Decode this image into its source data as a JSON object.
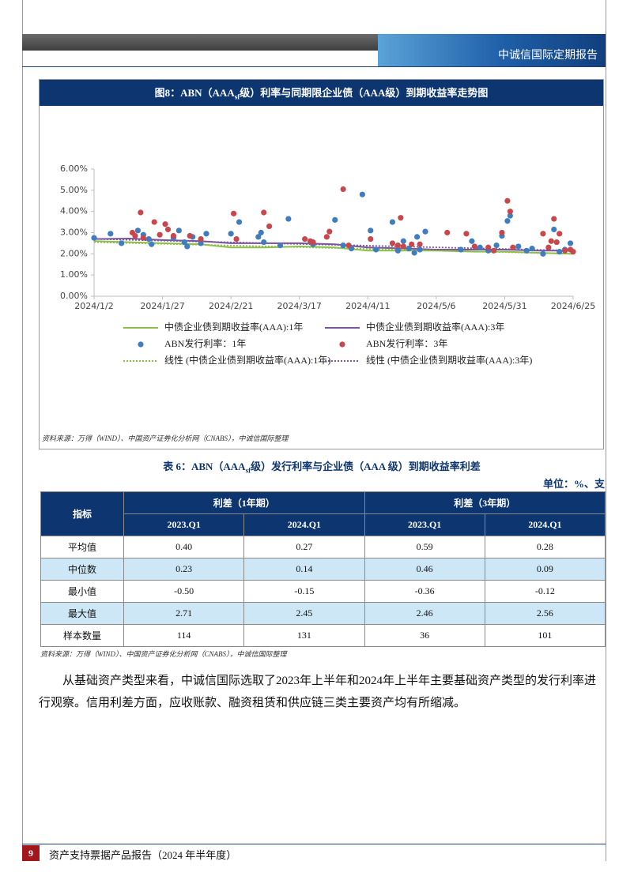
{
  "header": {
    "title": "中诚信国际定期报告"
  },
  "figure": {
    "title_pre": "图8：ABN（AAA",
    "title_sub": "sf",
    "title_post": "级）利率与同期限企业债（AAA级）到期收益率走势图",
    "source": "资料来源：万得（WIND）、中国资产证券化分析网（CNABS），中诚信国际整理"
  },
  "chart_data": {
    "type": "scatter",
    "xlim": [
      "2024/1/2",
      "2024/6/25"
    ],
    "xticks": [
      "2024/1/2",
      "2024/1/27",
      "2024/2/21",
      "2024/3/17",
      "2024/4/11",
      "2024/5/6",
      "2024/5/31",
      "2024/6/25"
    ],
    "ylim": [
      0,
      6
    ],
    "yticks": [
      {
        "value": 0,
        "label": "0.00%"
      },
      {
        "value": 1,
        "label": "1.00%"
      },
      {
        "value": 2,
        "label": "2.00%"
      },
      {
        "value": 3,
        "label": "3.00%"
      },
      {
        "value": 4,
        "label": "4.00%"
      },
      {
        "value": 5,
        "label": "5.00%"
      },
      {
        "value": 6,
        "label": "6.00%"
      }
    ],
    "grid": false,
    "series": [
      {
        "name": "中债企业债到期收益率(AAA):1年",
        "type": "line",
        "color": "#8dc04b",
        "x": [
          "2024/1/2",
          "2024/1/15",
          "2024/1/27",
          "2024/2/10",
          "2024/2/21",
          "2024/3/5",
          "2024/3/17",
          "2024/3/30",
          "2024/4/11",
          "2024/4/25",
          "2024/5/6",
          "2024/5/20",
          "2024/5/31",
          "2024/6/12",
          "2024/6/25"
        ],
        "values": [
          2.6,
          2.55,
          2.5,
          2.45,
          2.3,
          2.3,
          2.35,
          2.3,
          2.15,
          2.15,
          2.15,
          2.1,
          2.1,
          2.05,
          2.0
        ]
      },
      {
        "name": "中债企业债到期收益率(AAA):3年",
        "type": "line",
        "color": "#7a55a0",
        "x": [
          "2024/1/2",
          "2024/1/15",
          "2024/1/27",
          "2024/2/10",
          "2024/2/21",
          "2024/3/5",
          "2024/3/17",
          "2024/3/30",
          "2024/4/11",
          "2024/4/25",
          "2024/5/6",
          "2024/5/20",
          "2024/5/31",
          "2024/6/12",
          "2024/6/25"
        ],
        "values": [
          2.7,
          2.72,
          2.65,
          2.6,
          2.5,
          2.5,
          2.5,
          2.45,
          2.3,
          2.25,
          2.2,
          2.2,
          2.2,
          2.15,
          2.15
        ]
      },
      {
        "name": "ABN发行利率：1年",
        "type": "scatter",
        "color": "#3f7cc0",
        "x": [
          "2024/1/2",
          "2024/1/8",
          "2024/1/12",
          "2024/1/18",
          "2024/1/20",
          "2024/1/22",
          "2024/1/23",
          "2024/1/31",
          "2024/2/2",
          "2024/2/4",
          "2024/2/5",
          "2024/2/7",
          "2024/2/10",
          "2024/2/12",
          "2024/2/21",
          "2024/2/24",
          "2024/3/2",
          "2024/3/3",
          "2024/3/4",
          "2024/3/10",
          "2024/3/13",
          "2024/3/22",
          "2024/3/30",
          "2024/4/2",
          "2024/4/5",
          "2024/4/9",
          "2024/4/12",
          "2024/4/14",
          "2024/4/20",
          "2024/4/22",
          "2024/4/24",
          "2024/4/26",
          "2024/4/28",
          "2024/4/29",
          "2024/4/30",
          "2024/5/2",
          "2024/5/15",
          "2024/5/19",
          "2024/5/22",
          "2024/5/25",
          "2024/5/28",
          "2024/5/30",
          "2024/6/1",
          "2024/6/2",
          "2024/6/5",
          "2024/6/8",
          "2024/6/10",
          "2024/6/14",
          "2024/6/18",
          "2024/6/20",
          "2024/6/22",
          "2024/6/24"
        ],
        "values": [
          2.75,
          2.95,
          2.5,
          3.1,
          2.9,
          2.7,
          2.45,
          2.75,
          3.1,
          2.55,
          2.35,
          2.8,
          2.5,
          2.95,
          2.95,
          3.5,
          2.8,
          3.0,
          2.55,
          2.4,
          3.65,
          2.45,
          3.6,
          2.4,
          2.25,
          4.8,
          3.1,
          2.2,
          3.5,
          2.15,
          2.6,
          2.25,
          2.05,
          2.8,
          2.2,
          3.05,
          2.2,
          2.6,
          2.3,
          2.15,
          2.4,
          2.85,
          3.55,
          3.8,
          2.35,
          2.15,
          2.25,
          2.0,
          3.15,
          2.1,
          2.2,
          2.5
        ]
      },
      {
        "name": "ABN发行利率：3年",
        "type": "scatter",
        "color": "#c8474d",
        "x": [
          "2024/1/16",
          "2024/1/17",
          "2024/1/19",
          "2024/1/20",
          "2024/1/24",
          "2024/1/26",
          "2024/1/28",
          "2024/1/29",
          "2024/1/31",
          "2024/2/6",
          "2024/2/10",
          "2024/2/22",
          "2024/2/23",
          "2024/3/4",
          "2024/3/6",
          "2024/3/19",
          "2024/3/21",
          "2024/3/22",
          "2024/3/27",
          "2024/3/28",
          "2024/4/2",
          "2024/4/4",
          "2024/4/12",
          "2024/4/20",
          "2024/4/22",
          "2024/4/23",
          "2024/4/24",
          "2024/4/27",
          "2024/4/30",
          "2024/5/10",
          "2024/5/17",
          "2024/5/20",
          "2024/5/25",
          "2024/5/27",
          "2024/5/30",
          "2024/6/1",
          "2024/6/2",
          "2024/6/3",
          "2024/6/14",
          "2024/6/16",
          "2024/6/17",
          "2024/6/18",
          "2024/6/19",
          "2024/6/20",
          "2024/6/22",
          "2024/6/24",
          "2024/6/25"
        ],
        "values": [
          3.0,
          2.85,
          3.95,
          2.75,
          3.5,
          2.9,
          3.4,
          3.15,
          2.85,
          2.85,
          2.7,
          3.9,
          2.7,
          3.95,
          3.3,
          2.7,
          2.6,
          2.55,
          2.8,
          3.05,
          5.05,
          2.4,
          2.7,
          2.5,
          2.4,
          3.7,
          2.35,
          2.45,
          2.45,
          3.0,
          2.95,
          2.35,
          2.3,
          2.15,
          3.0,
          4.5,
          4.0,
          2.3,
          2.95,
          2.3,
          2.6,
          3.65,
          2.55,
          2.95,
          2.15,
          2.2,
          2.1
        ]
      },
      {
        "name": "线性 (中债企业债到期收益率(AAA):1年)",
        "type": "line",
        "dash": "dotted",
        "color": "#8dc04b",
        "x": [
          "2024/1/2",
          "2024/6/25"
        ],
        "values": [
          2.55,
          2.0
        ]
      },
      {
        "name": "线性 (中债企业债到期收益率(AAA):3年)",
        "type": "line",
        "dash": "dotted",
        "color": "#7a55a0",
        "x": [
          "2024/1/2",
          "2024/6/25"
        ],
        "values": [
          2.7,
          2.15
        ]
      }
    ]
  },
  "table": {
    "caption_pre": "表 6：ABN（AAA",
    "caption_sub": "sf",
    "caption_post": "级）发行利率与企业债（AAA 级）到期收益率利差",
    "unit": "单位：%、支",
    "head": {
      "indicator": "指标",
      "groups": [
        "利差（1年期）",
        "利差（3年期）"
      ],
      "periods": [
        "2023.Q1",
        "2024.Q1",
        "2023.Q1",
        "2024.Q1"
      ]
    },
    "rows": [
      [
        "平均值",
        "0.40",
        "0.27",
        "0.59",
        "0.28"
      ],
      [
        "中位数",
        "0.23",
        "0.14",
        "0.46",
        "0.09"
      ],
      [
        "最小值",
        "-0.50",
        "-0.15",
        "-0.36",
        "-0.12"
      ],
      [
        "最大值",
        "2.71",
        "2.45",
        "2.46",
        "2.56"
      ],
      [
        "样本数量",
        "114",
        "131",
        "36",
        "101"
      ]
    ],
    "source": "资料来源：万得（WIND）、中国资产证券化分析网（CNABS），中诚信国际整理"
  },
  "body": {
    "paragraph": "从基础资产类型来看，中诚信国际选取了2023年上半年和2024年上半年主要基础资产类型的发行利率进行观察。信用利差方面，应收账款、融资租赁和供应链三类主要资产均有所缩减。"
  },
  "footer": {
    "page": "9",
    "title": "资产支持票据产品报告（2024 年半年度）"
  }
}
